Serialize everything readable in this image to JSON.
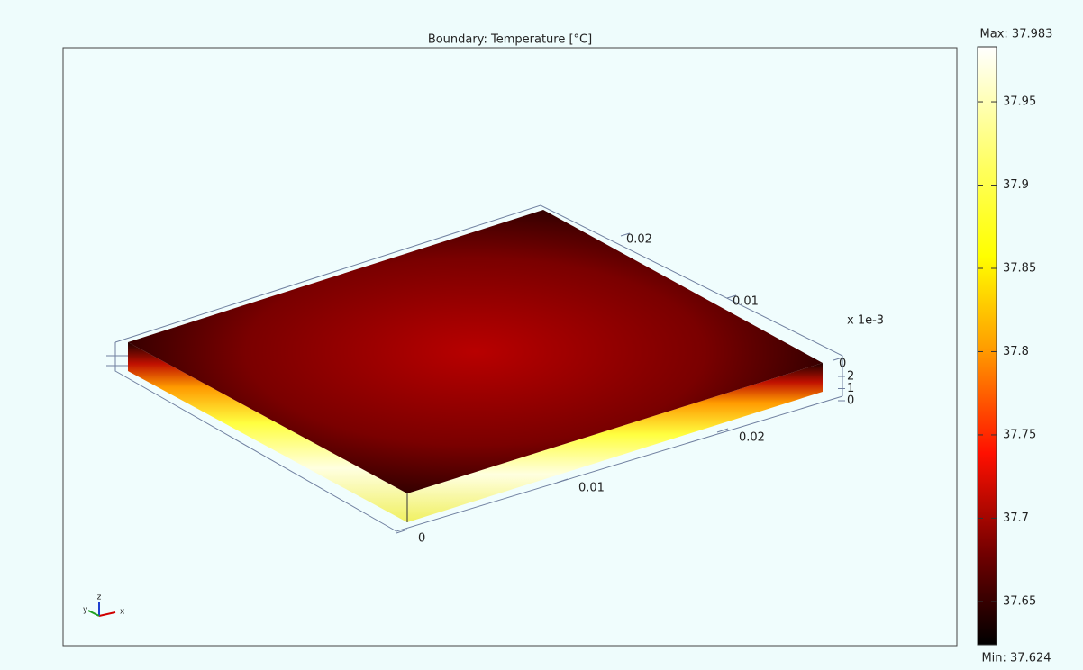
{
  "chart_data": {
    "type": "surface3d",
    "title": "Boundary: Temperature [°C]",
    "xticks": [
      0,
      0.01,
      0.02
    ],
    "yticks": [
      0,
      0.01,
      0.02
    ],
    "zticks": [
      0,
      1,
      2
    ],
    "z_multiplier": "x 1e-3",
    "clim": [
      37.624,
      37.983
    ],
    "cticks": [
      37.65,
      37.7,
      37.75,
      37.8,
      37.85,
      37.9,
      37.95
    ],
    "max": {
      "value": 37.983,
      "label": "Max: 37.983"
    },
    "min": {
      "value": 37.624,
      "label": "Min: 37.624"
    },
    "triad": {
      "x": "x",
      "y": "y",
      "z": "z"
    }
  }
}
